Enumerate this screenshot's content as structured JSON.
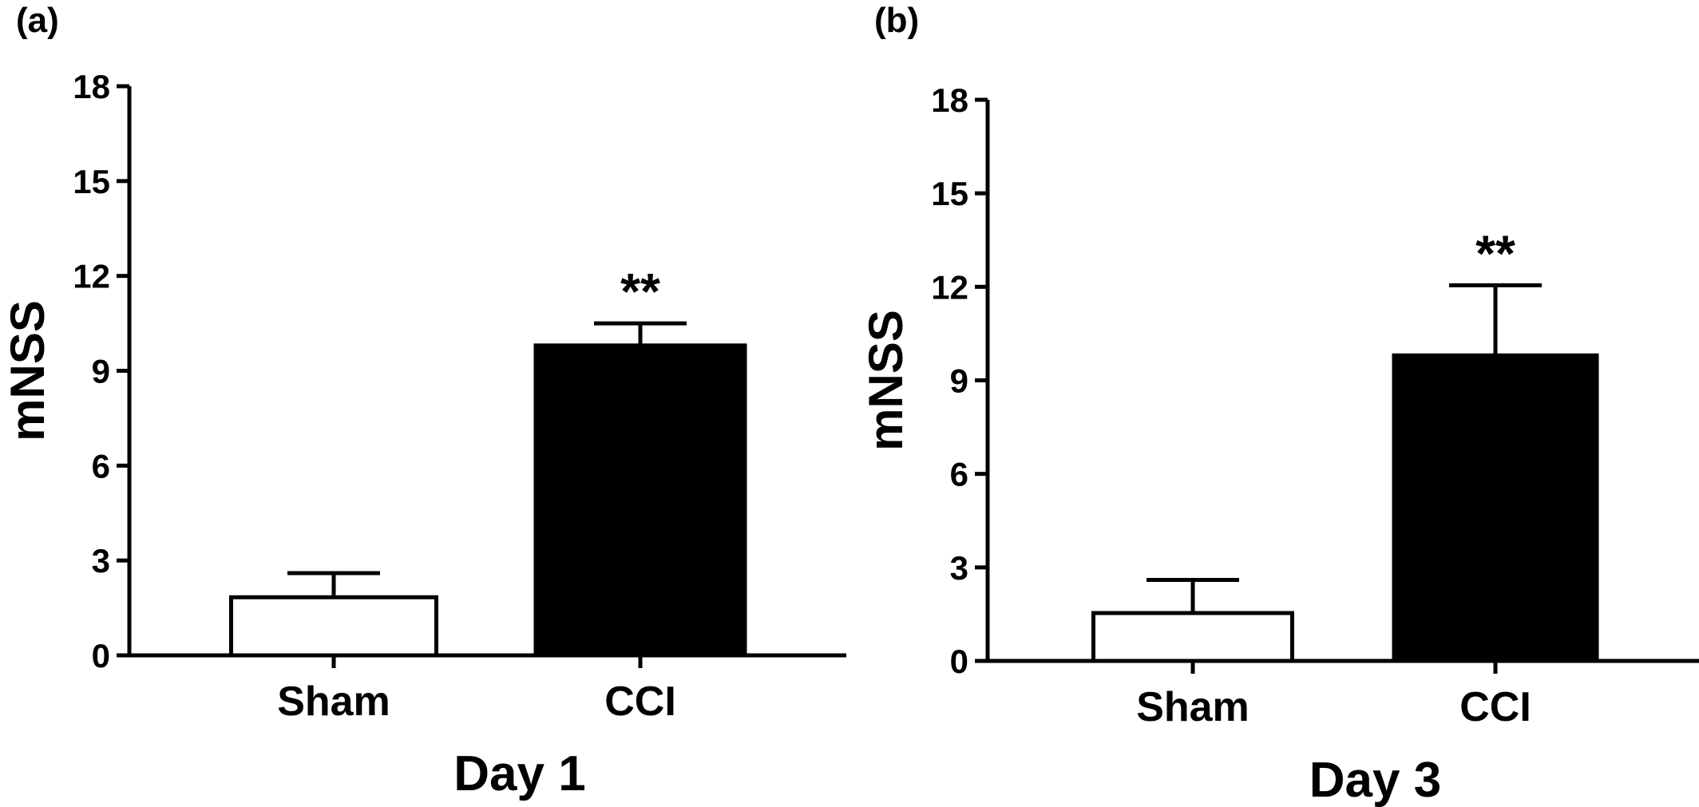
{
  "chart_data": [
    {
      "type": "bar",
      "panel_label": "(a)",
      "categories": [
        "Sham",
        "CCI"
      ],
      "values": [
        1.9,
        9.8
      ],
      "error_bars": [
        0.7,
        0.7
      ],
      "significance": [
        "",
        "**"
      ],
      "bar_fills": [
        "#ffffff",
        "#000000"
      ],
      "xlabel": "Day 1",
      "ylabel": "mNSS",
      "ylim": [
        0,
        18
      ],
      "yticks": [
        "0",
        "3",
        "6",
        "9",
        "12",
        "15",
        "18"
      ],
      "grid": false
    },
    {
      "type": "bar",
      "panel_label": "(b)",
      "categories": [
        "Sham",
        "CCI"
      ],
      "values": [
        1.6,
        9.8
      ],
      "error_bars": [
        1.0,
        2.25
      ],
      "significance": [
        "",
        "**"
      ],
      "bar_fills": [
        "#ffffff",
        "#000000"
      ],
      "xlabel": "Day 3",
      "ylabel": "mNSS",
      "ylim": [
        0,
        18
      ],
      "yticks": [
        "0",
        "3",
        "6",
        "9",
        "12",
        "15",
        "18"
      ],
      "grid": false
    }
  ]
}
